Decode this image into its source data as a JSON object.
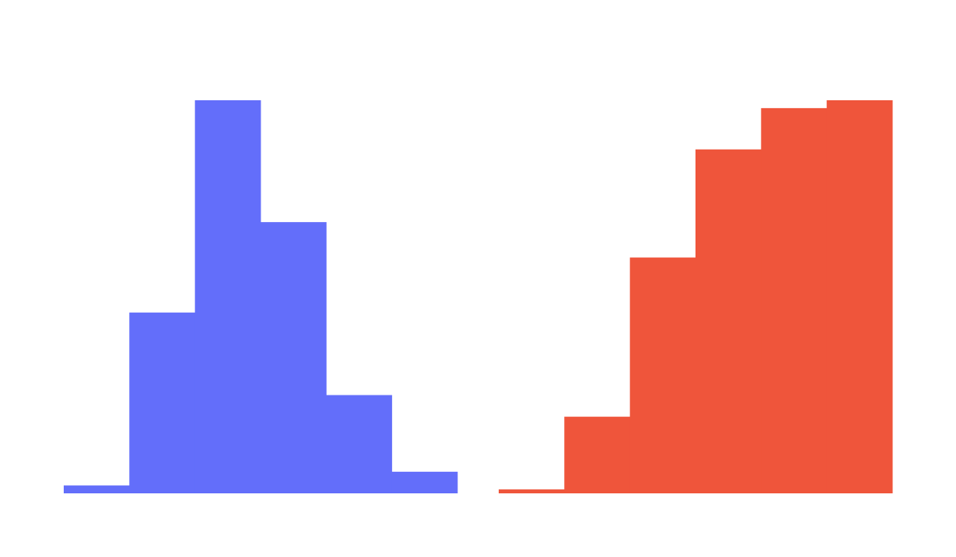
{
  "chart_data": [
    {
      "type": "bar",
      "subtype": "histogram",
      "x": [
        0,
        1,
        2,
        3,
        4,
        5
      ],
      "values": [
        0.02,
        0.46,
        1.0,
        0.69,
        0.25,
        0.055
      ],
      "ylim": [
        0,
        1
      ],
      "grid": false,
      "color": "#636efa"
    },
    {
      "type": "bar",
      "subtype": "histogram",
      "x": [
        0,
        1,
        2,
        3,
        4,
        5
      ],
      "values": [
        0.01,
        0.195,
        0.6,
        0.875,
        0.98,
        1.0
      ],
      "ylim": [
        0,
        1
      ],
      "grid": false,
      "color": "#ef553b"
    }
  ]
}
